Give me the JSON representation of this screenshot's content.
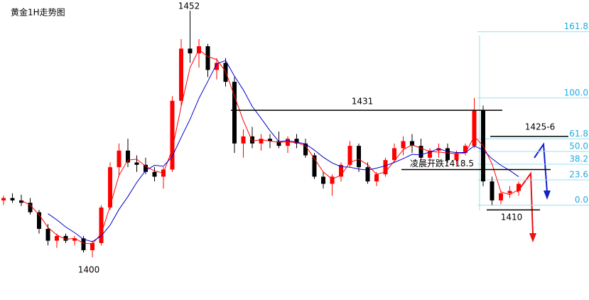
{
  "chart_data": {
    "type": "candlestick",
    "title": "黄金1H走势图",
    "open": [
      1412,
      1412.5,
      1412,
      1411.5,
      1409.5,
      1406,
      1403.5,
      1404.5,
      1403.5,
      1404,
      1401.5,
      1403,
      1410.5,
      1419,
      1422.5,
      1420,
      1419.5,
      1418,
      1417,
      1418.5,
      1433,
      1444,
      1443,
      1444.5,
      1439.5,
      1441,
      1437,
      1424,
      1425.5,
      1424,
      1425,
      1424.5,
      1423.5,
      1425,
      1424,
      1421.5,
      1417,
      1415.5,
      1417,
      1419.5,
      1423.5,
      1419,
      1416,
      1417.5,
      1420.5,
      1423,
      1424.5,
      1423.5,
      1421,
      1422.5,
      1423,
      1420.5,
      1422,
      1423.5,
      1431,
      1416,
      1412,
      1413.5,
      1414
    ],
    "high": [
      1413,
      1413.5,
      1413.2,
      1412.5,
      1410,
      1407,
      1405,
      1405,
      1404.5,
      1404.5,
      1403.5,
      1411,
      1420,
      1424,
      1425,
      1421.5,
      1421,
      1419,
      1419,
      1434,
      1446,
      1452,
      1446,
      1445,
      1442,
      1442,
      1438,
      1427,
      1427.5,
      1426,
      1426,
      1426.5,
      1425.5,
      1426,
      1425,
      1422,
      1418,
      1417.5,
      1420,
      1424.5,
      1424,
      1420,
      1418,
      1421,
      1424,
      1425.5,
      1426,
      1425,
      1423,
      1424,
      1424,
      1422.5,
      1424,
      1433.6,
      1432,
      1417,
      1414,
      1415,
      1416
    ],
    "low": [
      1411,
      1411.5,
      1410.8,
      1409,
      1405,
      1402.5,
      1402,
      1403,
      1402.5,
      1401,
      1400,
      1402.5,
      1410,
      1417,
      1419,
      1418,
      1417.5,
      1416,
      1414.5,
      1418,
      1432,
      1441,
      1440,
      1438,
      1437.5,
      1436,
      1422,
      1421,
      1423,
      1422.5,
      1423,
      1423,
      1422,
      1423,
      1421,
      1416.5,
      1414.5,
      1413,
      1416,
      1419,
      1418,
      1415.5,
      1415,
      1417,
      1420,
      1421.5,
      1422,
      1420.5,
      1419.5,
      1421,
      1420,
      1419.5,
      1421.5,
      1423,
      1415,
      1411,
      1411.2,
      1412.5,
      1413
    ],
    "close": [
      1412.5,
      1412,
      1411.5,
      1409.5,
      1406,
      1403.5,
      1404.5,
      1403.5,
      1404,
      1401.5,
      1403,
      1410.5,
      1419,
      1422.5,
      1420,
      1419.5,
      1418,
      1417,
      1418.5,
      1433,
      1444,
      1443,
      1444.5,
      1439.5,
      1441,
      1437,
      1424,
      1425.5,
      1424,
      1425,
      1424.5,
      1423.5,
      1425,
      1424,
      1421.5,
      1417,
      1415.5,
      1417,
      1419.5,
      1423.5,
      1419,
      1416,
      1417.5,
      1420.5,
      1423,
      1424.5,
      1423.5,
      1421,
      1422.5,
      1423,
      1420.5,
      1422,
      1423.5,
      1431,
      1416,
      1412,
      1413.5,
      1414,
      1415.5
    ],
    "up_color": "#ff0000",
    "down_color": "#000000",
    "ma": [
      {
        "color": "#ff0000",
        "values": [
          null,
          null,
          1412,
          1411,
          1409,
          1406.3,
          1404.7,
          1403.8,
          1404,
          1403,
          1402.8,
          1405,
          1410.8,
          1417.3,
          1420.5,
          1420.7,
          1419.2,
          1418.2,
          1417.8,
          1422.8,
          1431.8,
          1440,
          1443.8,
          1442.3,
          1441.7,
          1439.2,
          1434,
          1428.8,
          1424.5,
          1424.8,
          1424.5,
          1424.3,
          1424.3,
          1424.2,
          1423.5,
          1420.8,
          1418,
          1416.5,
          1417.3,
          1420,
          1420.7,
          1419.5,
          1417.5,
          1418,
          1420.3,
          1422.7,
          1423.7,
          1423,
          1422.3,
          1422.2,
          1422,
          1421.8,
          1422,
          1425.5,
          1423.5,
          1419.7,
          1413.8,
          1413.2,
          1414.3
        ]
      },
      {
        "color": "#0000cc",
        "values": [
          null,
          null,
          null,
          null,
          null,
          1409.2,
          1407.9,
          1406.4,
          1405.2,
          1403.8,
          1403.3,
          1404.5,
          1406.8,
          1410.1,
          1412.8,
          1415.8,
          1418.3,
          1419.4,
          1419.2,
          1421.3,
          1425.3,
          1429.1,
          1433.5,
          1437.1,
          1440.8,
          1441.5,
          1438.2,
          1435.3,
          1431.8,
          1429.3,
          1426.7,
          1424.4,
          1424.6,
          1424.3,
          1423.9,
          1422.6,
          1421.1,
          1419.9,
          1419.1,
          1419,
          1418.6,
          1418.4,
          1418.8,
          1419.3,
          1420,
          1420.8,
          1421.7,
          1421.6,
          1422.2,
          1422.9,
          1422.3,
          1422.1,
          1422.1,
          1423.5,
          1422.6,
          1420.8,
          1419.4,
          1418.3,
          1417
        ]
      }
    ],
    "ylim": [
      1391,
      1454.25
    ],
    "y2lim": [
      -88.5,
      191.4
    ],
    "y2ticks": [
      161.8,
      {
        "value": 100,
        "label": "100.0"
      },
      61.8,
      {
        "value": 50,
        "label": "50.0"
      },
      38.2,
      23.6,
      {
        "value": 0,
        "label": "0.0"
      }
    ],
    "fib_color": "#22aadd",
    "annotations": [
      1452,
      1400
    ],
    "levels": [
      {
        "label": "1431",
        "value": 1431
      },
      {
        "label": "凌晨开跌1418.5",
        "value": 1418.5
      },
      {
        "label": "1425-6",
        "value": 1425.5
      },
      {
        "label": "1410",
        "value": 1410
      }
    ]
  }
}
